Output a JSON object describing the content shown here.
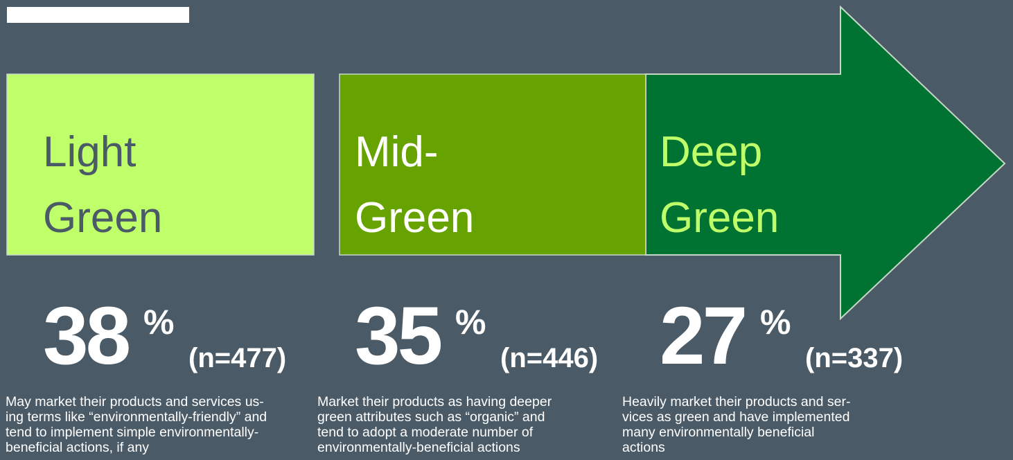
{
  "segments": [
    {
      "label_lines": [
        "Light",
        "Green"
      ],
      "percent": "38",
      "percent_sign": "%",
      "n": "(n=477)",
      "description_lines": [
        "May market their products and services us-",
        "ing terms like “environmentally-friendly” and",
        "tend to implement simple environmentally-",
        "beneficial actions, if any"
      ]
    },
    {
      "label_lines": [
        "Mid-",
        "Green"
      ],
      "percent": "35",
      "percent_sign": "%",
      "n": "(n=446)",
      "description_lines": [
        "Market their products as having deeper",
        "green attributes such as “organic” and",
        "tend to adopt a moderate number of",
        "environmentally-beneficial actions"
      ]
    },
    {
      "label_lines": [
        "Deep",
        "Green"
      ],
      "percent": "27",
      "percent_sign": "%",
      "n": "(n=337)",
      "description_lines": [
        "Heavily market their products and ser-",
        "vices as green and have implemented",
        "many environmentally beneficial",
        "actions"
      ]
    }
  ]
}
